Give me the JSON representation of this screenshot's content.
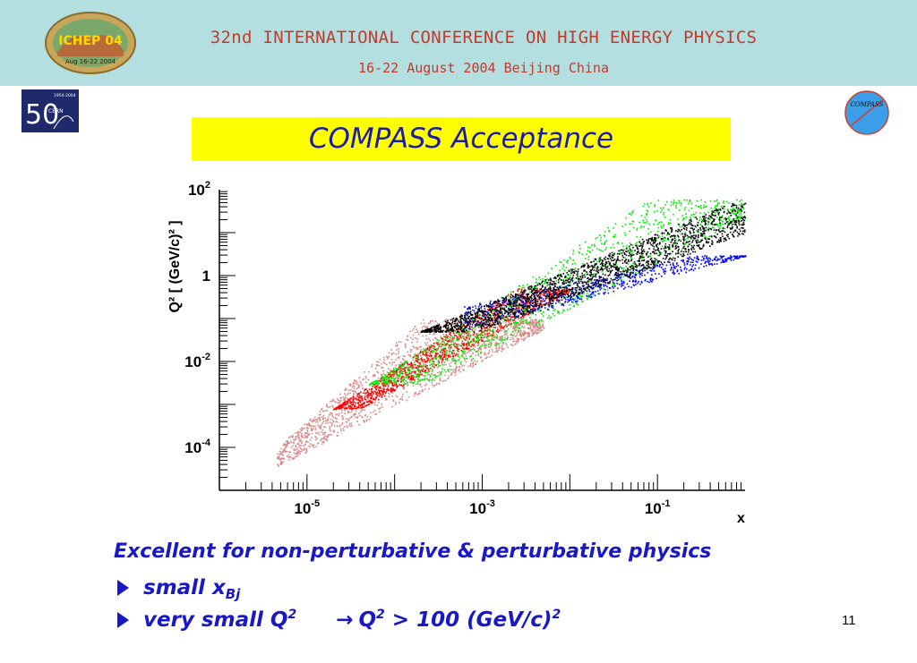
{
  "header": {
    "title": "32nd INTERNATIONAL CONFERENCE ON HIGH ENERGY PHYSICS",
    "subtitle": "16-22 August 2004 Beijing China",
    "ichep_logo_text": "ICHEP 04",
    "ichep_logo_sub": "Aug 16-22 2004"
  },
  "logos": {
    "cern": "CERN",
    "cern_years": "1954-2004",
    "cern_fifty": "50",
    "compass": "COMPASS"
  },
  "slide_title": "COMPASS Acceptance",
  "chart_data": {
    "type": "scatter",
    "title": "",
    "xlabel": "x",
    "ylabel": "Q² [ (GeV/c)² ]",
    "x_scale": "log",
    "y_scale": "log",
    "xlim": [
      1e-06,
      1
    ],
    "ylim": [
      1e-05,
      100
    ],
    "x_tick_labels": [
      {
        "value": 1e-05,
        "base": "10",
        "exp": "-5"
      },
      {
        "value": 0.001,
        "base": "10",
        "exp": "-3"
      },
      {
        "value": 0.1,
        "base": "10",
        "exp": "-1"
      }
    ],
    "y_tick_labels": [
      {
        "value": 100,
        "base": "10",
        "exp": "2"
      },
      {
        "value": 1,
        "base": "1",
        "exp": ""
      },
      {
        "value": 0.01,
        "base": "10",
        "exp": "-2"
      },
      {
        "value": 0.0001,
        "base": "10",
        "exp": "-4"
      }
    ],
    "series": [
      {
        "name": "pink",
        "color": "#d88a8a",
        "region": {
          "x_range": [
            4.5e-06,
            0.005
          ],
          "q2_range": [
            3e-05,
            0.2
          ]
        }
      },
      {
        "name": "red",
        "color": "#ff0000",
        "region": {
          "x_range": [
            1e-05,
            0.01
          ],
          "q2_range": [
            0.0008,
            0.5
          ]
        }
      },
      {
        "name": "green",
        "color": "#00ee00",
        "region": {
          "x_range": [
            2e-05,
            1
          ],
          "q2_range": [
            0.003,
            60
          ]
        }
      },
      {
        "name": "blue",
        "color": "#0000ff",
        "region": {
          "x_range": [
            0.0006,
            1
          ],
          "q2_range": [
            0.05,
            3
          ]
        }
      },
      {
        "name": "black",
        "color": "#000000",
        "region": {
          "x_range": [
            0.0002,
            1
          ],
          "q2_range": [
            0.05,
            50
          ]
        }
      }
    ]
  },
  "bullets": {
    "intro": "Excellent for non-perturbative & perturbative physics",
    "item1_text": "small x",
    "item1_sub": "Bj",
    "item2_text": "very small Q",
    "item2_sup": "2",
    "item2_arrow": "→",
    "item2_result": "Q",
    "item2_result_sup": "2",
    "item2_result_tail": " > 100 (GeV/c)",
    "item2_result_tail_sup": "2"
  },
  "page_number": "11"
}
